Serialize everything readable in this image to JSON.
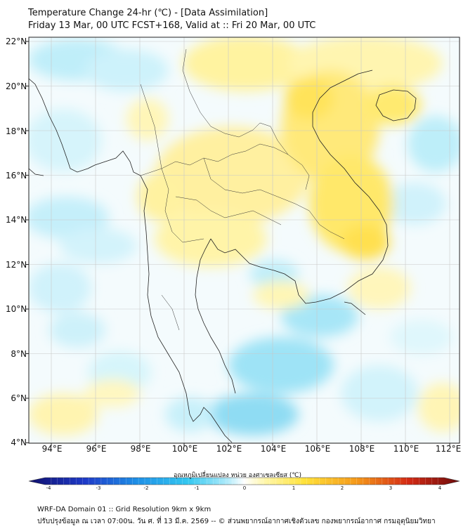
{
  "header": {
    "title": "Temperature Change 24-hr (℃) - [Data Assimilation]",
    "subtitle": "Friday 13 Mar, 00 UTC FCST+168, Valid at :: Fri 20 Mar, 00 UTC"
  },
  "axes": {
    "lat_labels": [
      "22°N",
      "20°N",
      "18°N",
      "16°N",
      "14°N",
      "12°N",
      "10°N",
      "8°N",
      "6°N",
      "4°N"
    ],
    "lon_labels": [
      "94°E",
      "96°E",
      "98°E",
      "100°E",
      "102°E",
      "104°E",
      "106°E",
      "108°E",
      "110°E",
      "112°E"
    ]
  },
  "colorbar": {
    "title": "อุณหภูมิเปลี่ยนแปลง หน่วย องศาเซลเซียส (℃)",
    "ticks": [
      "-4",
      "-3",
      "-2",
      "-1",
      "0",
      "1",
      "2",
      "3",
      "4"
    ],
    "colors": {
      "cold_dark": "#10106e",
      "cold": "#1e5fd8",
      "cyan": "#34c8f0",
      "light_cyan": "#aeeafa",
      "neutral": "#ffffff",
      "light_yellow": "#fff6a8",
      "yellow": "#ffe23a",
      "orange": "#f59a1a",
      "red": "#d42a14",
      "dark_red": "#6e0c0c"
    }
  },
  "footer": {
    "line1": "WRF-DA Domain 01 :: Grid Resolution 9km x 9km",
    "line2": "ปรับปรุงข้อมูล ณ เวลา 07:00น. วัน ศ. ที่ 13 มี.ค. 2569 -- © ส่วนพยากรณ์อากาศเชิงตัวเลข กองพยากรณ์อากาศ กรมอุตุนิยมวิทยา"
  }
}
